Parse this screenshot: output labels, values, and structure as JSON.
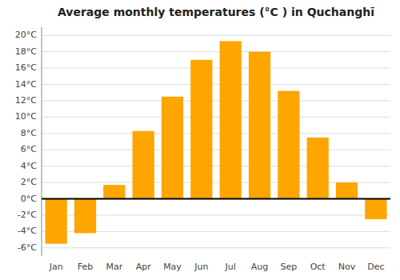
{
  "chart_data": {
    "type": "bar",
    "title": "Average monthly temperatures (°C ) in Quchanghī",
    "categories": [
      "Jan",
      "Feb",
      "Mar",
      "Apr",
      "May",
      "Jun",
      "Jul",
      "Aug",
      "Sep",
      "Oct",
      "Nov",
      "Dec"
    ],
    "values": [
      -5.5,
      -4.2,
      1.7,
      8.3,
      12.5,
      17.0,
      19.3,
      18.0,
      13.2,
      7.5,
      2.0,
      -2.5
    ],
    "color": "#FFA500",
    "ylim": [
      -7,
      21
    ],
    "yticks": [
      {
        "value": -6,
        "label": "-6°C"
      },
      {
        "value": -4,
        "label": "-4°C"
      },
      {
        "value": -2,
        "label": "-2°C"
      },
      {
        "value": 0,
        "label": "0°C"
      },
      {
        "value": 2,
        "label": "2°C"
      },
      {
        "value": 4,
        "label": "4°C"
      },
      {
        "value": 6,
        "label": "6°C"
      },
      {
        "value": 8,
        "label": "8°C"
      },
      {
        "value": 10,
        "label": "10°C"
      },
      {
        "value": 12,
        "label": "12°C"
      },
      {
        "value": 14,
        "label": "14°C"
      },
      {
        "value": 16,
        "label": "16°C"
      },
      {
        "value": 18,
        "label": "18°C"
      },
      {
        "value": 20,
        "label": "20°C"
      }
    ],
    "grid": true
  }
}
